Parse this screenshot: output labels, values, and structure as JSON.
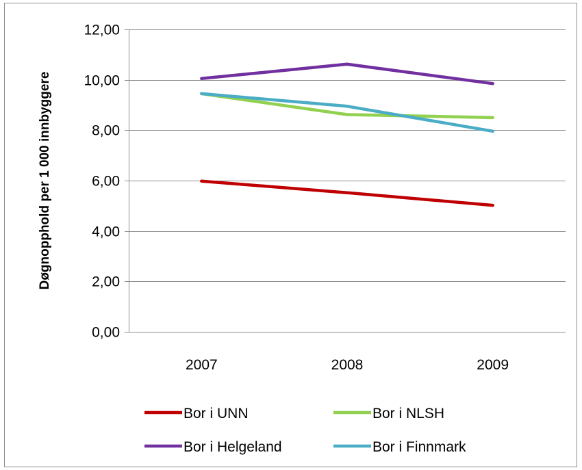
{
  "chart_data": {
    "type": "line",
    "title": "",
    "xlabel": "",
    "ylabel": "Døgnopphold per 1 000 innbyggere",
    "categories": [
      "2007",
      "2008",
      "2009"
    ],
    "ylim": [
      0,
      12
    ],
    "yticks": [
      "0,00",
      "2,00",
      "4,00",
      "6,00",
      "8,00",
      "10,00",
      "12,00"
    ],
    "ytick_values": [
      0,
      2,
      4,
      6,
      8,
      10,
      12
    ],
    "grid": true,
    "legend_position": "bottom",
    "series": [
      {
        "name": "Bor i UNN",
        "values": [
          5.98,
          5.52,
          5.02
        ],
        "color": "#C00000"
      },
      {
        "name": "Bor i NLSH",
        "values": [
          9.45,
          8.62,
          8.5
        ],
        "color": "#92D050"
      },
      {
        "name": "Bor i Helgeland",
        "values": [
          10.05,
          10.62,
          9.85
        ],
        "color": "#7030A0"
      },
      {
        "name": "Bor i Finnmark",
        "values": [
          9.45,
          8.95,
          7.96
        ],
        "color": "#4BACC6"
      }
    ]
  }
}
